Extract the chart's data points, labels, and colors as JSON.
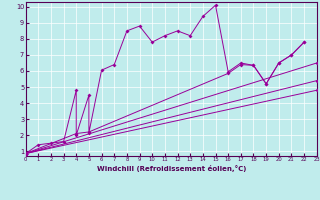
{
  "bg_color": "#c0ecec",
  "line_color": "#990099",
  "xlabel": "Windchill (Refroidissement éolien,°C)",
  "xlim": [
    0,
    23
  ],
  "ylim": [
    0.7,
    10.3
  ],
  "yticks": [
    1,
    2,
    3,
    4,
    5,
    6,
    7,
    8,
    9,
    10
  ],
  "xticks": [
    0,
    1,
    2,
    3,
    4,
    5,
    6,
    7,
    8,
    9,
    10,
    11,
    12,
    13,
    14,
    15,
    16,
    17,
    18,
    19,
    20,
    21,
    22,
    23
  ],
  "main_x": [
    0,
    1,
    2,
    3,
    4,
    4,
    5,
    5,
    6,
    7,
    8,
    9,
    10,
    11,
    12,
    13,
    14,
    15,
    16,
    17,
    18,
    19,
    20,
    21,
    22
  ],
  "main_y": [
    0.85,
    1.4,
    1.5,
    1.6,
    4.8,
    2.0,
    4.5,
    2.15,
    6.05,
    6.4,
    8.5,
    8.8,
    7.8,
    8.2,
    8.5,
    8.2,
    9.4,
    10.1,
    5.95,
    6.5,
    6.35,
    5.2,
    6.5,
    7.0,
    7.8
  ],
  "line2_x": [
    0,
    4,
    5,
    16,
    17,
    18,
    19,
    20,
    21,
    22
  ],
  "line2_y": [
    0.85,
    2.1,
    2.2,
    5.85,
    6.4,
    6.35,
    5.2,
    6.5,
    7.0,
    7.8
  ],
  "line3_x": [
    0,
    23
  ],
  "line3_y": [
    0.85,
    6.5
  ],
  "line4_x": [
    0,
    23
  ],
  "line4_y": [
    0.85,
    5.4
  ],
  "line5_x": [
    0,
    23
  ],
  "line5_y": [
    0.85,
    4.8
  ]
}
